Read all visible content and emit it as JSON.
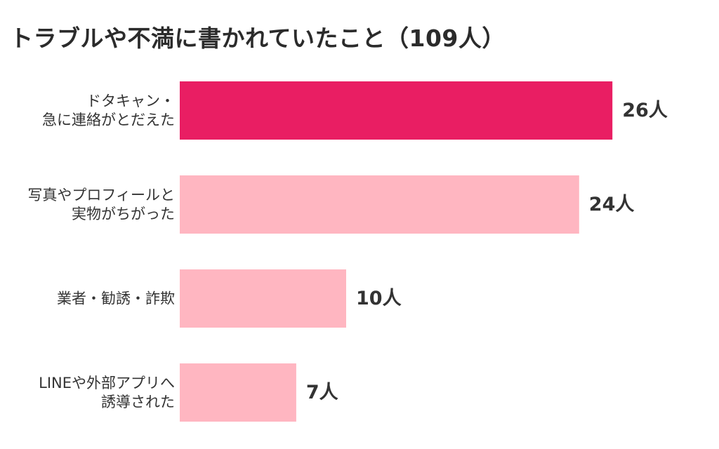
{
  "chart_data": {
    "type": "bar",
    "orientation": "horizontal",
    "title": "トラブルや不満に書かれていたこと（109人）",
    "categories": [
      [
        "ドタキャン・",
        "急に連絡がとだえた"
      ],
      [
        "写真やプロフィールと",
        "実物がちがった"
      ],
      [
        "業者・勧誘・詐欺"
      ],
      [
        "LINEや外部アプリへ",
        "誘導された"
      ]
    ],
    "values": [
      26,
      24,
      10,
      7
    ],
    "value_labels": [
      "26人",
      "24人",
      "10人",
      "7人"
    ],
    "unit": "人",
    "highlight_color": "#e91e63",
    "bar_color": "#ffb6c1",
    "highlight_index": 0,
    "grid": false,
    "legend": "none"
  }
}
